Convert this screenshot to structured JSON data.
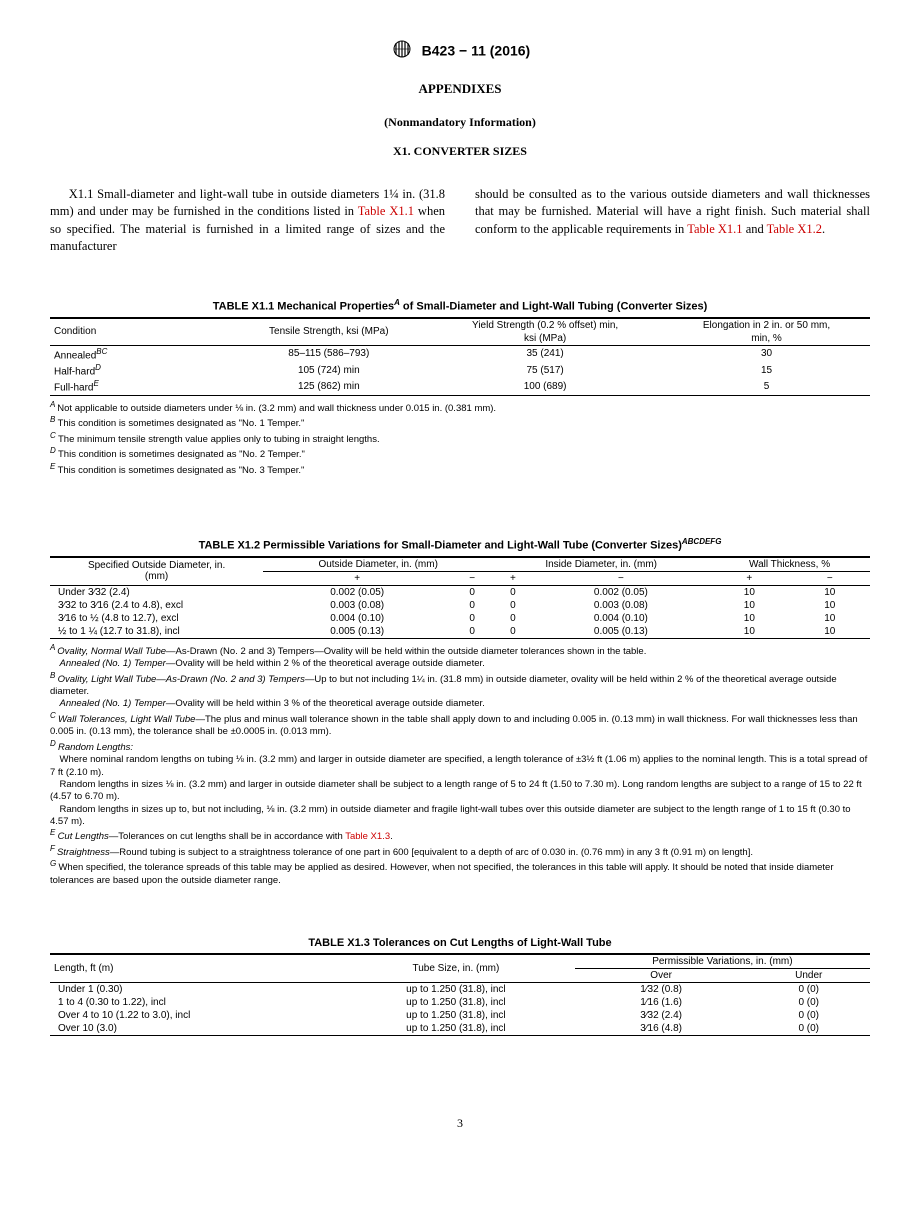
{
  "header": {
    "std": "B423 − 11 (2016)"
  },
  "titles": {
    "appendix": "APPENDIXES",
    "nonmand": "(Nonmandatory Information)",
    "section": "X1.  CONVERTER SIZES"
  },
  "text": {
    "col1_a": "X1.1 Small-diameter and light-wall tube in outside diameters 1¼ in. (31.8 mm) and under may be furnished in the conditions listed in ",
    "col1_link": "Table X1.1",
    "col1_b": " when so specified. The material is furnished in a limited range of sizes and the manufacturer",
    "col2_a": "should be consulted as to the various outside diameters and wall thicknesses that may be furnished. Material will have a right finish. Such material shall conform to the applicable requirements in ",
    "col2_link1": "Table X1.1",
    "col2_mid": " and ",
    "col2_link2": "Table X1.2",
    "col2_end": "."
  },
  "table_x11": {
    "title": "TABLE X1.1 Mechanical Properties",
    "title_sup": "A",
    "title_rest": " of Small-Diameter and Light-Wall Tubing (Converter Sizes)",
    "h_condition": "Condition",
    "h_tensile": "Tensile Strength, ksi (MPa)",
    "h_yield1": "Yield Strength (0.2 % offset) min,",
    "h_yield2": "ksi (MPa)",
    "h_elong1": "Elongation in 2 in. or 50 mm,",
    "h_elong2": "min, %",
    "rows": [
      {
        "cond": "Annealed",
        "sup": "BC",
        "tensile": "85–115 (586–793)",
        "yield": "35 (241)",
        "elong": "30"
      },
      {
        "cond": "Half-hard",
        "sup": "D",
        "tensile": "105 (724) min",
        "yield": "75 (517)",
        "elong": "15"
      },
      {
        "cond": "Full-hard",
        "sup": "E",
        "tensile": "125 (862) min",
        "yield": "100 (689)",
        "elong": "5"
      }
    ],
    "fn": {
      "A": "Not applicable to outside diameters under ⅛ in. (3.2 mm) and wall thickness under 0.015 in. (0.381 mm).",
      "B": "This condition is sometimes designated as \"No. 1 Temper.\"",
      "C": "The minimum tensile strength value applies only to tubing in straight lengths.",
      "D": "This condition is sometimes designated as \"No. 2 Temper.\"",
      "E": "This condition is sometimes designated as \"No. 3 Temper.\""
    }
  },
  "table_x12": {
    "title": "TABLE X1.2 Permissible Variations for Small-Diameter and Light-Wall Tube (Converter Sizes)",
    "title_sup": "ABCDEFG",
    "h_spec1": "Specified Outside Diameter, in.",
    "h_spec2": "(mm)",
    "h_od": "Outside Diameter, in. (mm)",
    "h_id": "Inside Diameter, in. (mm)",
    "h_wt": "Wall Thickness, %",
    "plus": "+",
    "minus": "−",
    "rows": [
      {
        "spec": "Under 3⁄32 (2.4)",
        "odp": "0.002 (0.05)",
        "odm": "0",
        "idp": "0",
        "idm": "0.002 (0.05)",
        "wtp": "10",
        "wtm": "10"
      },
      {
        "spec": "3⁄32 to 3⁄16 (2.4 to 4.8), excl",
        "odp": "0.003 (0.08)",
        "odm": "0",
        "idp": "0",
        "idm": "0.003 (0.08)",
        "wtp": "10",
        "wtm": "10"
      },
      {
        "spec": "3⁄16 to ½ (4.8 to 12.7), excl",
        "odp": "0.004 (0.10)",
        "odm": "0",
        "idp": "0",
        "idm": "0.004 (0.10)",
        "wtp": "10",
        "wtm": "10"
      },
      {
        "spec": "½ to 1 ¼ (12.7 to 31.8), incl",
        "odp": "0.005 (0.13)",
        "odm": "0",
        "idp": "0",
        "idm": "0.005 (0.13)",
        "wtp": "10",
        "wtm": "10"
      }
    ],
    "fn": {
      "A1_label": "Ovality, Normal Wall Tube",
      "A1": "—As-Drawn (No. 2 and 3) Tempers—Ovality will be held within the outside diameter tolerances shown in the table.",
      "A2_label": "Annealed (No. 1) Temper",
      "A2": "—Ovality will be held within 2 % of the theoretical average outside diameter.",
      "B1_label": "Ovality, Light Wall Tube—As-Drawn (No. 2 and 3) Tempers",
      "B1": "—Up to but not including 1¼ in. (31.8 mm) in outside diameter, ovality will be held within 2 % of the theoretical average outside diameter.",
      "B2_label": "Annealed (No. 1) Temper",
      "B2": "—Ovality will be held within 3 % of the theoretical average outside diameter.",
      "C_label": "Wall Tolerances, Light Wall Tube",
      "C": "—The plus and minus wall tolerance shown in the table shall apply down to and including 0.005 in. (0.13 mm) in wall thickness. For wall thicknesses less than 0.005 in. (0.13 mm), the tolerance shall be ±0.0005 in. (0.013 mm).",
      "D_label": "Random Lengths:",
      "D1": "Where nominal random lengths on tubing ⅛ in. (3.2 mm) and larger in outside diameter are specified, a length tolerance of ±3½ ft (1.06 m) applies to the nominal length. This is a total spread of 7 ft (2.10 m).",
      "D2": "Random lengths in sizes ⅛ in. (3.2 mm) and larger in outside diameter shall be subject to a length range of 5 to 24 ft (1.50 to 7.30 m). Long random lengths are subject to a range of 15 to 22 ft (4.57 to 6.70 m).",
      "D3": "Random lengths in sizes up to, but not including, ⅛ in. (3.2 mm) in outside diameter and fragile light-wall tubes over this outside diameter are subject to the length range of 1 to 15 ft (0.30 to 4.57 m).",
      "E_label": "Cut Lengths",
      "E": "—Tolerances on cut lengths shall be in accordance with ",
      "E_link": "Table X1.3",
      "E_end": ".",
      "F_label": "Straightness",
      "F": "—Round tubing is subject to a straightness tolerance of one part in 600 [equivalent to a depth of arc of 0.030 in. (0.76 mm) in any 3 ft (0.91 m) on length].",
      "G": "When specified, the tolerance spreads of this table may be applied as desired. However, when not specified, the tolerances in this table will apply. It should be noted that inside diameter tolerances are based upon the outside diameter range."
    }
  },
  "table_x13": {
    "title": "TABLE X1.3 Tolerances on Cut Lengths of Light-Wall Tube",
    "h_length": "Length, ft (m)",
    "h_tube": "Tube Size, in. (mm)",
    "h_perm": "Permissible Variations, in. (mm)",
    "h_over": "Over",
    "h_under": "Under",
    "rows": [
      {
        "len": "Under 1 (0.30)",
        "tube": "up to 1.250 (31.8), incl",
        "over": "1⁄32 (0.8)",
        "under": "0 (0)"
      },
      {
        "len": "1 to 4 (0.30 to 1.22), incl",
        "tube": "up to 1.250 (31.8), incl",
        "over": "1⁄16 (1.6)",
        "under": "0 (0)"
      },
      {
        "len": "Over 4 to 10 (1.22 to 3.0), incl",
        "tube": "up to 1.250 (31.8), incl",
        "over": "3⁄32 (2.4)",
        "under": "0 (0)"
      },
      {
        "len": "Over 10 (3.0)",
        "tube": "up to 1.250 (31.8), incl",
        "over": "3⁄16 (4.8)",
        "under": "0 (0)"
      }
    ]
  },
  "page": "3"
}
